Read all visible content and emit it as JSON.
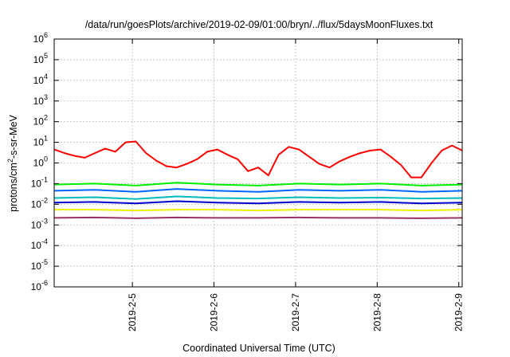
{
  "chart_data": {
    "type": "line",
    "title": "/data/run/goesPlots/archive/2019-02-09/01:00/bryn/../flux/5daysMoonFluxes.txt",
    "xlabel": "Coordinated Universal Time (UTC)",
    "ylabel": {
      "prefix": "protons/cm",
      "sup": "2",
      "suffix": "-s-sr-MeV"
    },
    "yscale": "log",
    "ylim": [
      1e-06,
      1000000.0
    ],
    "xlim": [
      "2019-02-04T01:00",
      "2019-02-09T01:00"
    ],
    "grid": true,
    "y_ticks": [
      {
        "value": 1e-06,
        "base": "10",
        "exp": "-6"
      },
      {
        "value": 1e-05,
        "base": "10",
        "exp": "-5"
      },
      {
        "value": 0.0001,
        "base": "10",
        "exp": "-4"
      },
      {
        "value": 0.001,
        "base": "10",
        "exp": "-3"
      },
      {
        "value": 0.01,
        "base": "10",
        "exp": "-2"
      },
      {
        "value": 0.1,
        "base": "10",
        "exp": "-1"
      },
      {
        "value": 1.0,
        "base": "10",
        "exp": "0"
      },
      {
        "value": 10.0,
        "base": "10",
        "exp": "1"
      },
      {
        "value": 100.0,
        "base": "10",
        "exp": "2"
      },
      {
        "value": 1000.0,
        "base": "10",
        "exp": "3"
      },
      {
        "value": 10000.0,
        "base": "10",
        "exp": "4"
      },
      {
        "value": 100000.0,
        "base": "10",
        "exp": "5"
      },
      {
        "value": 1000000.0,
        "base": "10",
        "exp": "6"
      }
    ],
    "x_ticks": [
      "2019-2-5",
      "2019-2-6",
      "2019-2-7",
      "2019-2-8",
      "2019-2-9"
    ],
    "x_tick_values": [
      "2019-02-05T00:00",
      "2019-02-06T00:00",
      "2019-02-07T00:00",
      "2019-02-08T00:00",
      "2019-02-09T00:00"
    ],
    "series": [
      {
        "color": "#ff0000",
        "x": [
          "2019-02-04T01:00",
          "2019-02-04T04:00",
          "2019-02-04T07:00",
          "2019-02-04T10:00",
          "2019-02-04T13:00",
          "2019-02-04T16:00",
          "2019-02-04T19:00",
          "2019-02-04T22:00",
          "2019-02-05T01:00",
          "2019-02-05T04:00",
          "2019-02-05T07:00",
          "2019-02-05T10:00",
          "2019-02-05T13:00",
          "2019-02-05T16:00",
          "2019-02-05T19:00",
          "2019-02-05T22:00",
          "2019-02-06T01:00",
          "2019-02-06T04:00",
          "2019-02-06T07:00",
          "2019-02-06T10:00",
          "2019-02-06T13:00",
          "2019-02-06T16:00",
          "2019-02-06T19:00",
          "2019-02-06T22:00",
          "2019-02-07T01:00",
          "2019-02-07T04:00",
          "2019-02-07T07:00",
          "2019-02-07T10:00",
          "2019-02-07T13:00",
          "2019-02-07T16:00",
          "2019-02-07T19:00",
          "2019-02-07T22:00",
          "2019-02-08T01:00",
          "2019-02-08T04:00",
          "2019-02-08T07:00",
          "2019-02-08T10:00",
          "2019-02-08T13:00",
          "2019-02-08T16:00",
          "2019-02-08T19:00",
          "2019-02-08T22:00",
          "2019-02-09T01:00"
        ],
        "values": [
          4.5,
          3.0,
          2.2,
          1.8,
          3.0,
          5.0,
          3.5,
          10,
          11,
          3.0,
          1.3,
          0.7,
          0.6,
          0.9,
          1.5,
          3.5,
          4.5,
          2.5,
          1.5,
          0.4,
          0.6,
          0.25,
          2.5,
          6.0,
          4.5,
          2.0,
          0.9,
          0.6,
          1.2,
          2.0,
          3.0,
          4.0,
          4.5,
          2.0,
          0.8,
          0.2,
          0.2,
          1.0,
          4.0,
          7.0,
          4.0
        ]
      },
      {
        "color": "#00ee00",
        "x": [
          "2019-02-04T01:00",
          "2019-02-04T13:00",
          "2019-02-05T01:00",
          "2019-02-05T13:00",
          "2019-02-06T01:00",
          "2019-02-06T13:00",
          "2019-02-07T01:00",
          "2019-02-07T13:00",
          "2019-02-08T01:00",
          "2019-02-08T13:00",
          "2019-02-09T01:00"
        ],
        "values": [
          0.09,
          0.1,
          0.08,
          0.11,
          0.09,
          0.08,
          0.1,
          0.09,
          0.1,
          0.08,
          0.09
        ]
      },
      {
        "color": "#0066ff",
        "x": [
          "2019-02-04T01:00",
          "2019-02-04T13:00",
          "2019-02-05T01:00",
          "2019-02-05T13:00",
          "2019-02-06T01:00",
          "2019-02-06T13:00",
          "2019-02-07T01:00",
          "2019-02-07T13:00",
          "2019-02-08T01:00",
          "2019-02-08T13:00",
          "2019-02-09T01:00"
        ],
        "values": [
          0.045,
          0.05,
          0.04,
          0.055,
          0.045,
          0.04,
          0.05,
          0.045,
          0.05,
          0.04,
          0.045
        ]
      },
      {
        "color": "#00bbbb",
        "x": [
          "2019-02-04T01:00",
          "2019-02-04T13:00",
          "2019-02-05T01:00",
          "2019-02-05T13:00",
          "2019-02-06T01:00",
          "2019-02-06T13:00",
          "2019-02-07T01:00",
          "2019-02-07T13:00",
          "2019-02-08T01:00",
          "2019-02-08T13:00",
          "2019-02-09T01:00"
        ],
        "values": [
          0.02,
          0.022,
          0.018,
          0.024,
          0.02,
          0.019,
          0.022,
          0.02,
          0.021,
          0.019,
          0.02
        ]
      },
      {
        "color": "#0000cc",
        "x": [
          "2019-02-04T01:00",
          "2019-02-04T13:00",
          "2019-02-05T01:00",
          "2019-02-05T13:00",
          "2019-02-06T01:00",
          "2019-02-06T13:00",
          "2019-02-07T01:00",
          "2019-02-07T13:00",
          "2019-02-08T01:00",
          "2019-02-08T13:00",
          "2019-02-09T01:00"
        ],
        "values": [
          0.012,
          0.013,
          0.011,
          0.014,
          0.012,
          0.011,
          0.013,
          0.012,
          0.013,
          0.011,
          0.012
        ]
      },
      {
        "color": "#eeee00",
        "x": [
          "2019-02-04T01:00",
          "2019-02-04T13:00",
          "2019-02-05T01:00",
          "2019-02-05T13:00",
          "2019-02-06T01:00",
          "2019-02-06T13:00",
          "2019-02-07T01:00",
          "2019-02-07T13:00",
          "2019-02-08T01:00",
          "2019-02-08T13:00",
          "2019-02-09T01:00"
        ],
        "values": [
          0.0055,
          0.0055,
          0.005,
          0.0055,
          0.0055,
          0.005,
          0.0055,
          0.0055,
          0.0055,
          0.005,
          0.0055
        ]
      },
      {
        "color": "#993366",
        "x": [
          "2019-02-04T01:00",
          "2019-02-04T13:00",
          "2019-02-05T01:00",
          "2019-02-05T13:00",
          "2019-02-06T01:00",
          "2019-02-06T13:00",
          "2019-02-07T01:00",
          "2019-02-07T13:00",
          "2019-02-08T01:00",
          "2019-02-08T13:00",
          "2019-02-09T01:00"
        ],
        "values": [
          0.0022,
          0.0023,
          0.0021,
          0.0023,
          0.0022,
          0.0022,
          0.0023,
          0.0022,
          0.0022,
          0.0021,
          0.0022
        ]
      }
    ]
  }
}
